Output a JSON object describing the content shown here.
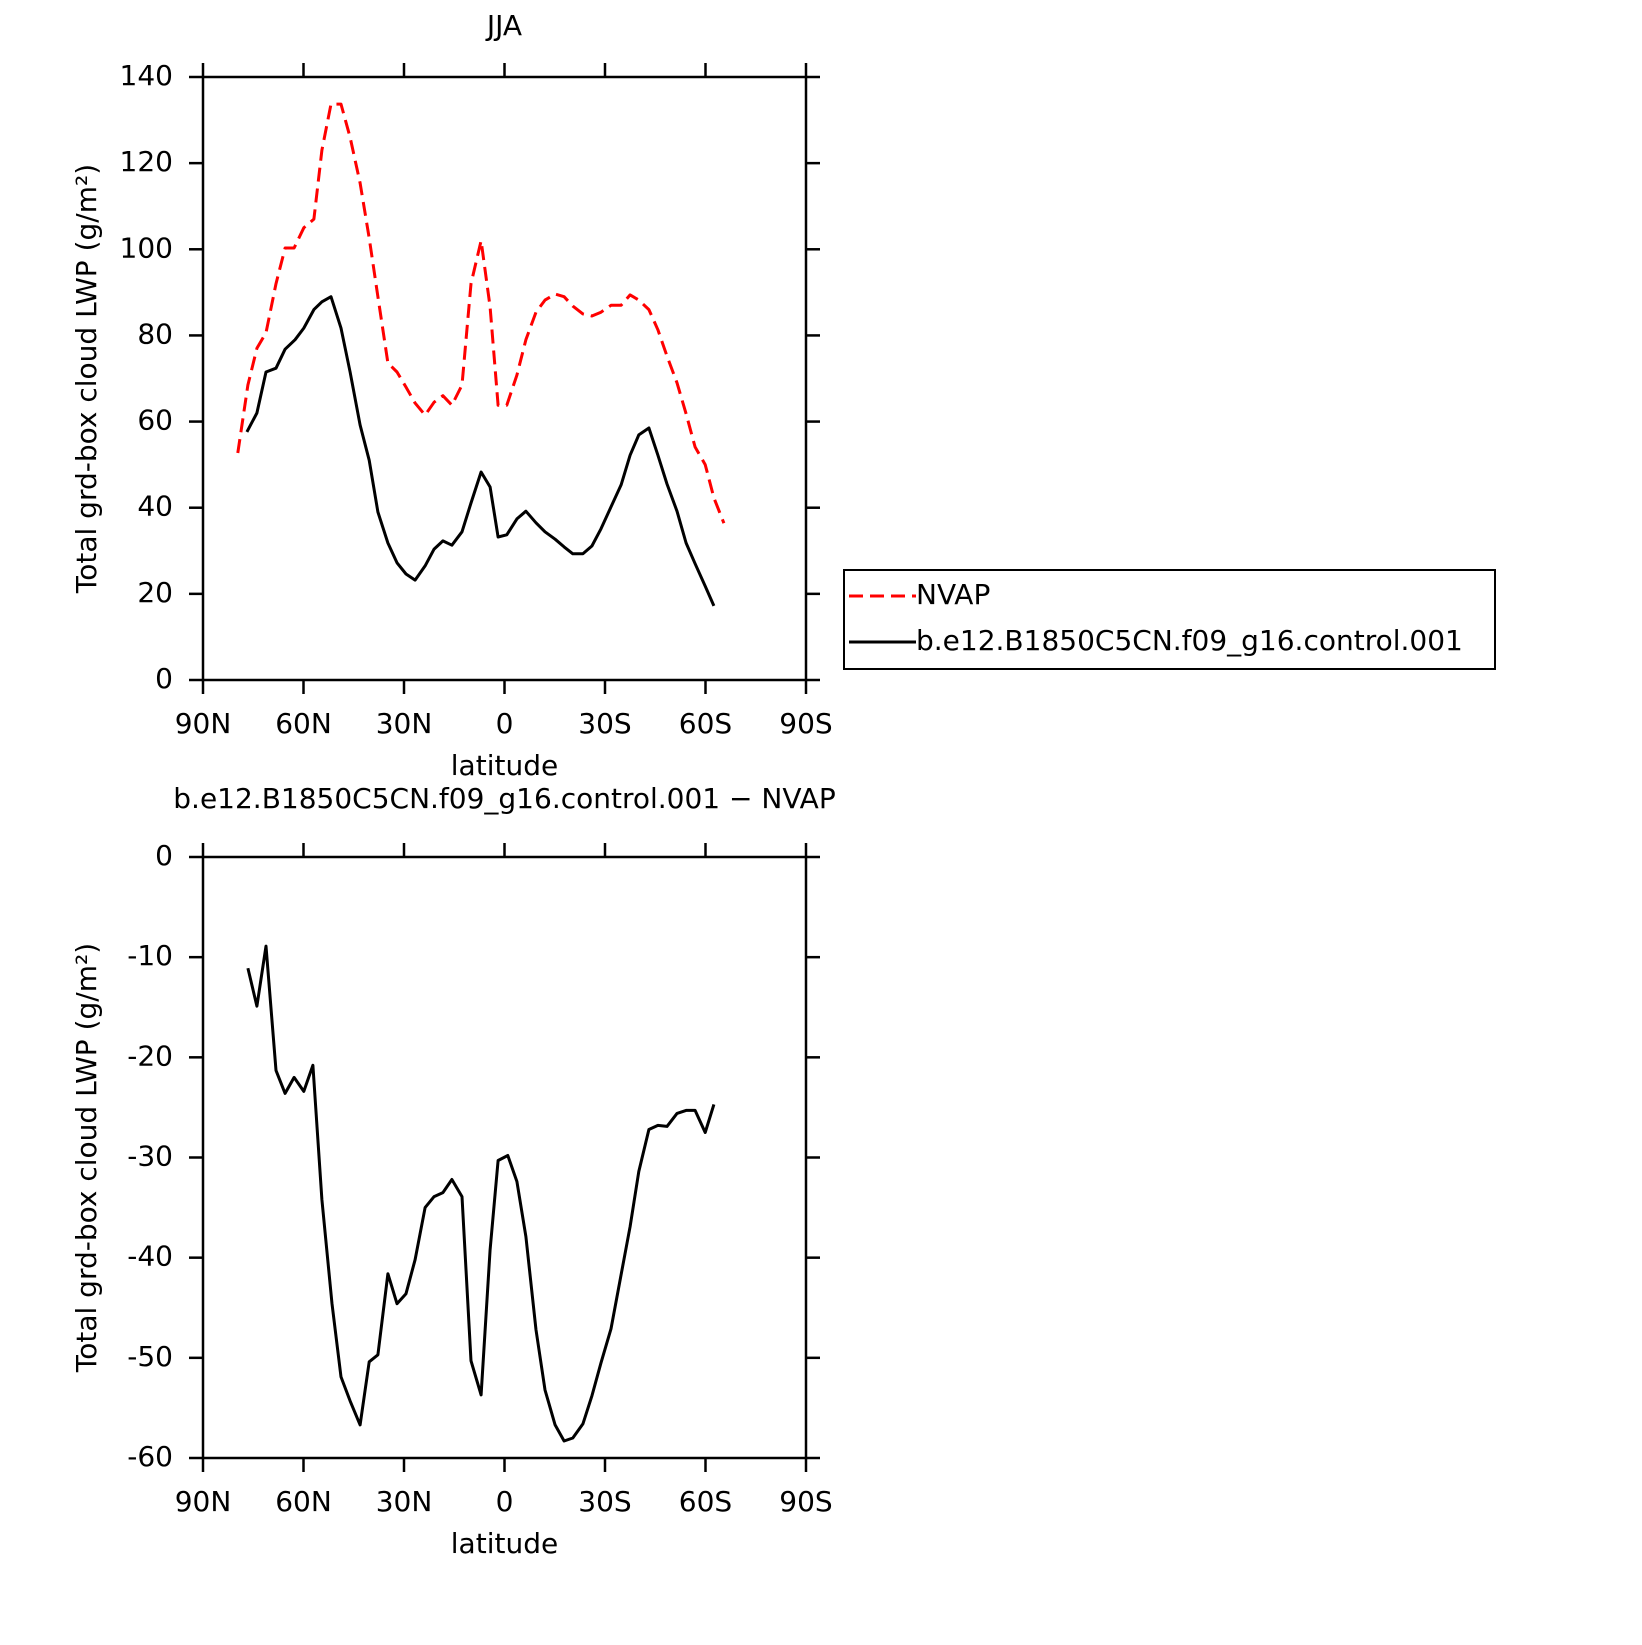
{
  "chart_data": [
    {
      "type": "line",
      "title": "JJA",
      "xlabel": "latitude",
      "ylabel": "Total grd-box cloud LWP (g/m²)",
      "xlim": [
        90,
        -90
      ],
      "xticks": [
        {
          "value": 90,
          "label": "90N"
        },
        {
          "value": 60,
          "label": "60N"
        },
        {
          "value": 30,
          "label": "30N"
        },
        0,
        {
          "value": -30,
          "label": "30S"
        },
        {
          "value": -60,
          "label": "60S"
        },
        {
          "value": -90,
          "label": "90S"
        }
      ],
      "ylim": [
        0,
        140
      ],
      "yticks": [
        0,
        20,
        40,
        60,
        80,
        100,
        120,
        140
      ],
      "legend": "right",
      "series": [
        {
          "name": "NVAP",
          "color": "#ff0000",
          "linestyle": "dashed",
          "x": [
            79.6,
            76.6,
            73.9,
            71.2,
            68.2,
            65.5,
            62.8,
            59.9,
            56.9,
            54.5,
            51.8,
            48.8,
            46.1,
            43.1,
            40.4,
            37.8,
            34.8,
            32.1,
            29.4,
            26.7,
            23.7,
            21.0,
            18.4,
            15.7,
            12.7,
            10.0,
            7.0,
            4.3,
            1.9,
            -0.7,
            -3.7,
            -6.4,
            -9.4,
            -12.1,
            -15.1,
            -17.8,
            -20.4,
            -23.4,
            -26.1,
            -28.8,
            -31.8,
            -34.8,
            -37.5,
            -40.1,
            -43.1,
            -45.8,
            -48.5,
            -51.5,
            -54.2,
            -56.9,
            -59.9,
            -62.5,
            -65.5
          ],
          "values": [
            52.7,
            68.5,
            77,
            80.6,
            92,
            100.3,
            100.3,
            105,
            107,
            123,
            133.7,
            133.7,
            126,
            115.4,
            102.6,
            89,
            73.6,
            71.5,
            68,
            64.3,
            61.5,
            64.5,
            66,
            63.8,
            68.5,
            92,
            102,
            86.6,
            63.8,
            63.8,
            70.8,
            79,
            85.4,
            88.2,
            89.6,
            89,
            86.8,
            85,
            84.5,
            85.4,
            87,
            87,
            89.4,
            88.2,
            86,
            81.3,
            75.2,
            69,
            61.8,
            54.1,
            50,
            42.3,
            36.4
          ]
        },
        {
          "name": "b.e12.B1850C5CN.f09_g16.control.001",
          "color": "#000000",
          "linestyle": "solid",
          "x": [
            76.9,
            73.9,
            71.2,
            68.2,
            65.5,
            62.5,
            59.9,
            56.9,
            54.5,
            51.8,
            48.8,
            46.1,
            43.1,
            40.4,
            37.8,
            34.8,
            32.1,
            29.4,
            26.7,
            23.7,
            21.0,
            18.4,
            15.7,
            12.7,
            10.0,
            7.0,
            4.3,
            1.9,
            -0.7,
            -3.7,
            -6.4,
            -9.4,
            -12.1,
            -15.1,
            -17.8,
            -20.4,
            -23.4,
            -26.1,
            -28.8,
            -31.8,
            -34.8,
            -37.5,
            -40.1,
            -43.1,
            -45.8,
            -48.5,
            -51.5,
            -54.2,
            -56.9,
            -59.9,
            -62.5
          ],
          "values": [
            57.6,
            62,
            71.5,
            72.4,
            76.8,
            79,
            81.7,
            86,
            87.8,
            89,
            81.7,
            71.5,
            59.2,
            51,
            39,
            31.8,
            27.2,
            24.6,
            23.2,
            26.5,
            30.4,
            32.3,
            31.3,
            34.4,
            41.1,
            48.3,
            44.8,
            33.2,
            33.7,
            37.4,
            39.2,
            36.5,
            34.4,
            32.7,
            30.9,
            29.3,
            29.3,
            31.1,
            35.1,
            40.2,
            45.3,
            52.2,
            56.9,
            58.5,
            52.2,
            45.5,
            39.2,
            31.8,
            27,
            21.8,
            17.2
          ]
        }
      ]
    },
    {
      "type": "line",
      "title": "b.e12.B1850C5CN.f09_g16.control.001 − NVAP",
      "xlabel": "latitude",
      "ylabel": "Total grd-box cloud LWP (g/m²)",
      "xlim": [
        90,
        -90
      ],
      "xticks": [
        {
          "value": 90,
          "label": "90N"
        },
        {
          "value": 60,
          "label": "60N"
        },
        {
          "value": 30,
          "label": "30N"
        },
        0,
        {
          "value": -30,
          "label": "30S"
        },
        {
          "value": -60,
          "label": "60S"
        },
        {
          "value": -90,
          "label": "90S"
        }
      ],
      "ylim": [
        -60,
        0
      ],
      "yticks": [
        -60,
        -50,
        -40,
        -30,
        -20,
        -10,
        0
      ],
      "series": [
        {
          "color": "#000000",
          "linestyle": "solid",
          "x": [
            76.6,
            73.9,
            71.2,
            68.2,
            65.5,
            62.8,
            59.9,
            57.2,
            54.5,
            51.5,
            48.8,
            46.1,
            43.1,
            40.4,
            37.8,
            34.8,
            32.1,
            29.4,
            26.7,
            23.7,
            21.0,
            18.4,
            15.7,
            12.7,
            10.0,
            7.0,
            4.3,
            1.9,
            -1.0,
            -3.7,
            -6.4,
            -9.4,
            -12.1,
            -15.1,
            -17.8,
            -20.4,
            -23.4,
            -26.1,
            -28.8,
            -31.8,
            -34.8,
            -37.5,
            -40.1,
            -43.1,
            -45.8,
            -48.5,
            -51.5,
            -54.2,
            -56.9,
            -59.9,
            -62.5
          ],
          "values": [
            -11.1,
            -14.9,
            -8.9,
            -21.3,
            -23.6,
            -22.0,
            -23.4,
            -20.8,
            -34.2,
            -44.6,
            -51.9,
            -54.3,
            -56.7,
            -50.4,
            -49.7,
            -41.6,
            -44.6,
            -43.6,
            -40.2,
            -35,
            -33.9,
            -33.5,
            -32.2,
            -33.9,
            -50.3,
            -53.7,
            -39.2,
            -30.3,
            -29.8,
            -32.4,
            -37.9,
            -47.2,
            -53.2,
            -56.7,
            -58.3,
            -58,
            -56.6,
            -53.8,
            -50.5,
            -47.1,
            -41.7,
            -36.9,
            -31.4,
            -27.2,
            -26.8,
            -26.9,
            -25.6,
            -25.3,
            -25.3,
            -27.5,
            -24.7
          ]
        }
      ]
    }
  ]
}
